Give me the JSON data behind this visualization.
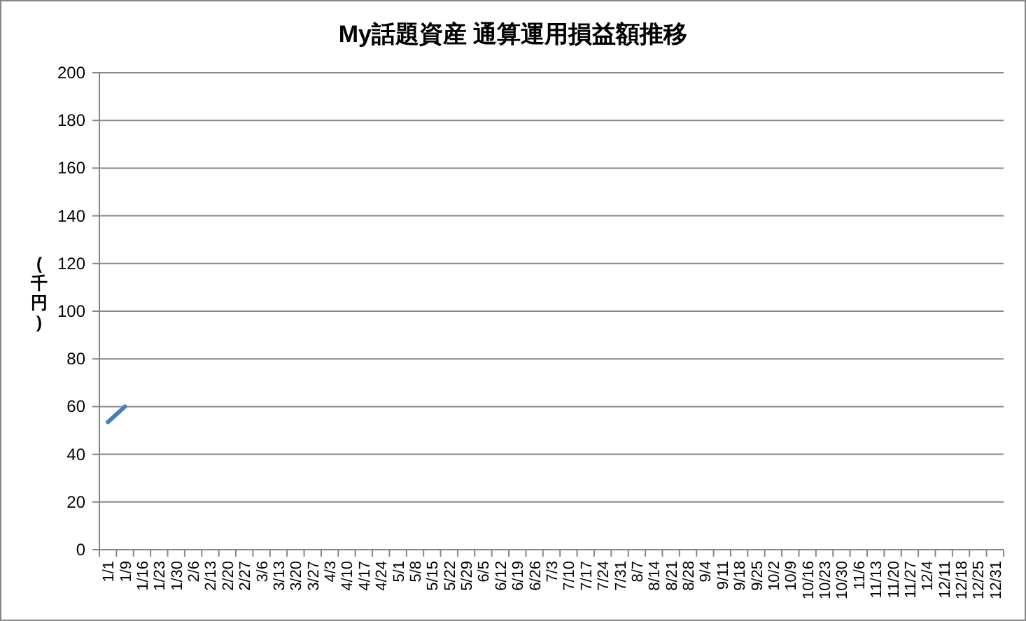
{
  "chart_data": {
    "type": "line",
    "title": "My話題資産 通算運用損益額推移",
    "ylabel": "(千円)",
    "categories": [
      "1/1",
      "1/9",
      "1/16",
      "1/23",
      "1/30",
      "2/6",
      "2/13",
      "2/20",
      "2/27",
      "3/6",
      "3/13",
      "3/20",
      "3/27",
      "4/3",
      "4/10",
      "4/17",
      "4/24",
      "5/1",
      "5/8",
      "5/15",
      "5/22",
      "5/29",
      "6/5",
      "6/12",
      "6/19",
      "6/26",
      "7/3",
      "7/10",
      "7/17",
      "7/24",
      "7/31",
      "8/7",
      "8/14",
      "8/21",
      "8/28",
      "9/4",
      "9/11",
      "9/18",
      "9/25",
      "10/2",
      "10/9",
      "10/16",
      "10/23",
      "10/30",
      "11/6",
      "11/13",
      "11/20",
      "11/27",
      "12/4",
      "12/11",
      "12/18",
      "12/25",
      "12/31"
    ],
    "series": [
      {
        "color": "#4a7ebb",
        "values": [
          53.5,
          60,
          null,
          null,
          null,
          null,
          null,
          null,
          null,
          null,
          null,
          null,
          null,
          null,
          null,
          null,
          null,
          null,
          null,
          null,
          null,
          null,
          null,
          null,
          null,
          null,
          null,
          null,
          null,
          null,
          null,
          null,
          null,
          null,
          null,
          null,
          null,
          null,
          null,
          null,
          null,
          null,
          null,
          null,
          null,
          null,
          null,
          null,
          null,
          null,
          null,
          null,
          null
        ]
      }
    ],
    "ylim": [
      0,
      200
    ],
    "yticks": [
      0,
      20,
      40,
      60,
      80,
      100,
      120,
      140,
      160,
      180,
      200
    ],
    "grid": "y",
    "marker": "none",
    "line_style": "solid"
  }
}
